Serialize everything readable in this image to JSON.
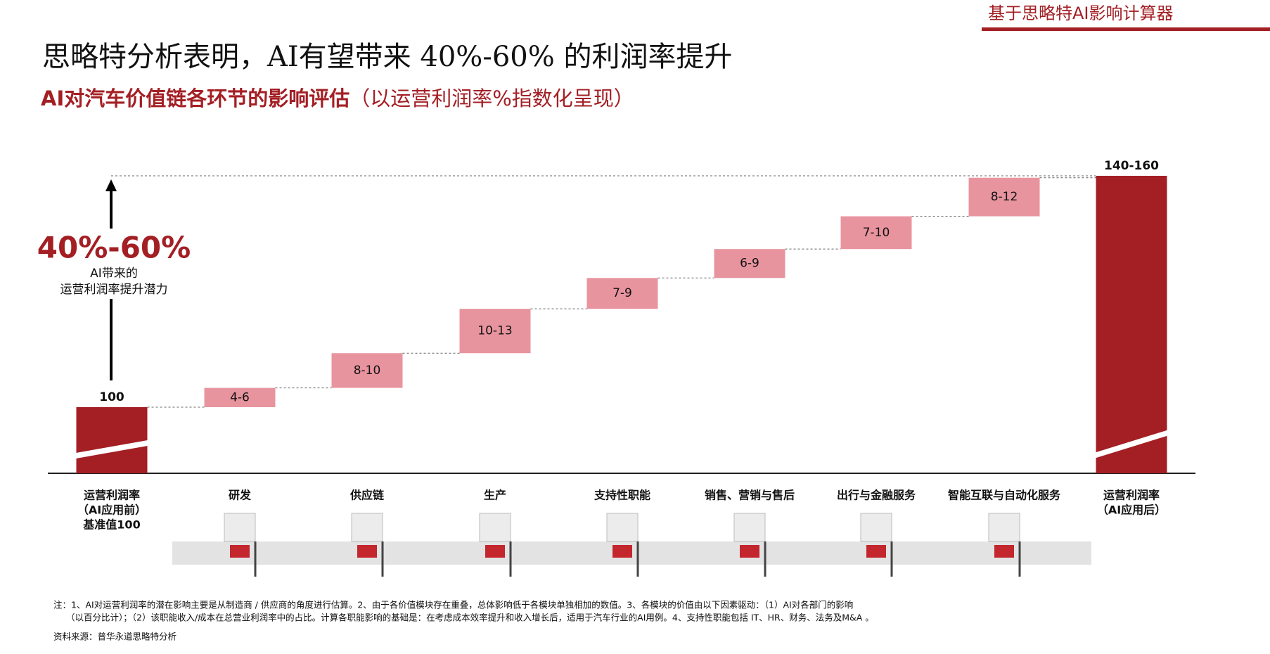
{
  "header": {
    "tag": "基于思略特AI影响计算器"
  },
  "chart_data": {
    "type": "waterfall",
    "title": "思略特分析表明，AI有望带来 40%-60% 的利润率提升",
    "subtitle": "AI对汽车价值链各环节的影响评估",
    "subtitle_note": "（以运营利润率%指数化呈现）",
    "annotation": {
      "headline": "40%-60%",
      "lines": [
        "AI带来的",
        "运营利润率提升潜力"
      ]
    },
    "base": {
      "value": 100
    },
    "steps": [
      {
        "low": 4,
        "high": 6,
        "label": "4-6"
      },
      {
        "low": 8,
        "high": 10,
        "label": "8-10"
      },
      {
        "low": 10,
        "high": 13,
        "label": "10-13"
      },
      {
        "low": 7,
        "high": 9,
        "label": "7-9"
      },
      {
        "low": 6,
        "high": 9,
        "label": "6-9"
      },
      {
        "low": 7,
        "high": 10,
        "label": "7-10"
      },
      {
        "low": 8,
        "high": 12,
        "label": "8-12"
      }
    ],
    "total": {
      "low": 140,
      "high": 160,
      "label": "140-160"
    },
    "categories": [
      [
        "运营利润率",
        "（AI应用前）",
        "基准值100"
      ],
      [
        "研发"
      ],
      [
        "供应链"
      ],
      [
        "生产"
      ],
      [
        "支持性职能"
      ],
      [
        "销售、营销与售后"
      ],
      [
        "出行与金融服务"
      ],
      [
        "智能互联与自动化服务"
      ],
      [
        "运营利润率",
        "（AI应用后）"
      ]
    ],
    "bar_color": "#a31f24",
    "step_color": "#e8949f"
  },
  "notes": [
    "注：1、AI对运营利润率的潜在影响主要是从制造商 / 供应商的角度进行估算。2、由于各价值模块存在重叠，总体影响低于各模块单独相加的数值。3、各模块的价值由以下因素驱动：（1）AI对各部门的影响",
    "（以百分比计）；（2）该职能收入/成本在总营业利润率中的占比。计算各职能影响的基础是：在考虑成本效率提升和收入增长后，适用于汽车行业的AI用例。4、支持性职能包括 IT、HR、财务、法务及M&A 。"
  ],
  "source": "资料来源：普华永道思略特分析"
}
